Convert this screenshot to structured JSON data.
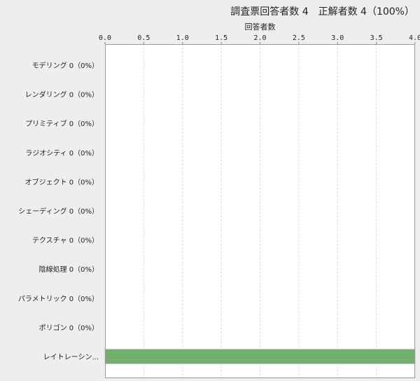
{
  "chart_data": {
    "type": "bar",
    "orientation": "horizontal",
    "title": "調査票回答者数 4　正解者数 4（100%）",
    "xlabel": "回答者数",
    "xlim": [
      0,
      4
    ],
    "x_ticks": [
      "0.0",
      "0.5",
      "1.0",
      "1.5",
      "2.0",
      "2.5",
      "3.0",
      "3.5",
      "4.0"
    ],
    "axis_position": "top",
    "grid": true,
    "categories": [
      "モデリング 0（0%）",
      "レンダリング 0（0%）",
      "プリミティブ 0（0%）",
      "ラジオシティ 0（0%）",
      "オブジェクト 0（0%）",
      "シェーディング 0（0%）",
      "テクスチャ 0（0%）",
      "陰線処理 0（0%）",
      "パラメトリック 0（0%）",
      "ポリゴン 0（0%）",
      "レイトレーシン..."
    ],
    "values": [
      0,
      0,
      0,
      0,
      0,
      0,
      0,
      0,
      0,
      0,
      4
    ],
    "bar_color": "#73b06b"
  }
}
